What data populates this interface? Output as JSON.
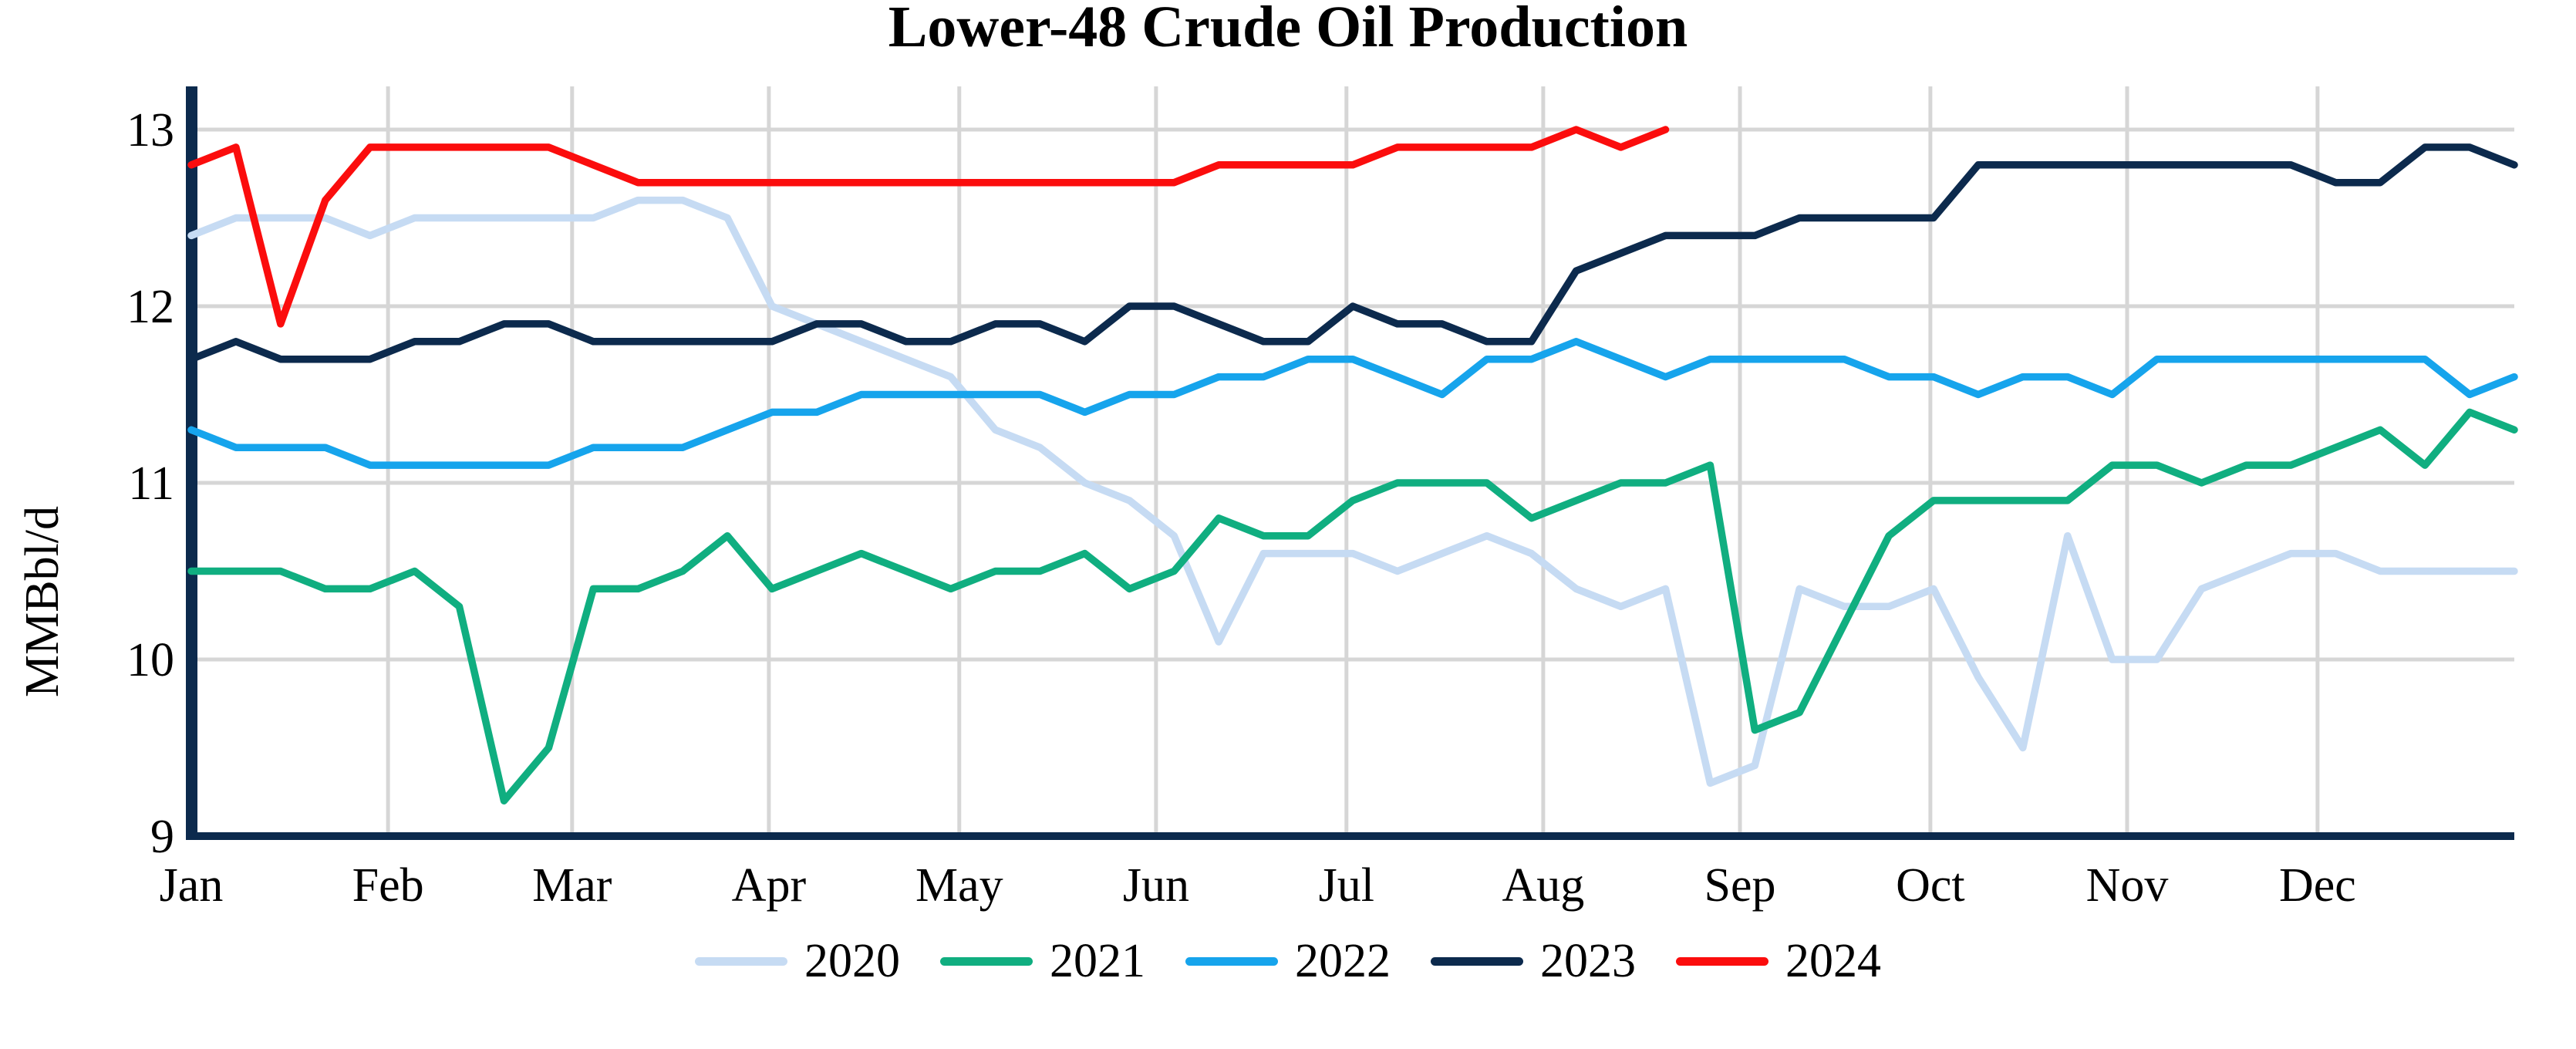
{
  "chart_data": {
    "type": "line",
    "title": "Lower-48 Crude Oil Production",
    "ylabel": "MMBbl/d",
    "x_unit": "week of year",
    "x_tick_labels": [
      "Jan",
      "Feb",
      "Mar",
      "Apr",
      "May",
      "Jun",
      "Jul",
      "Aug",
      "Sep",
      "Oct",
      "Nov",
      "Dec"
    ],
    "y_ticks": [
      9,
      10,
      11,
      12,
      13
    ],
    "ylim": [
      9,
      13
    ],
    "weeks_full_year": 53,
    "grid": true,
    "legend_position": "bottom",
    "colors": {
      "axis": "#0C2A4D",
      "gridline": "#D6D6D6",
      "text": "#000000",
      "background": "#FFFFFF"
    },
    "series": [
      {
        "name": "2020",
        "color": "#C6DBF3",
        "values": [
          12.4,
          12.5,
          12.5,
          12.5,
          12.4,
          12.5,
          12.5,
          12.5,
          12.5,
          12.5,
          12.6,
          12.6,
          12.5,
          12.0,
          11.9,
          11.8,
          11.7,
          11.6,
          11.3,
          11.2,
          11.0,
          10.9,
          10.7,
          10.1,
          10.6,
          10.6,
          10.6,
          10.5,
          10.6,
          10.7,
          10.6,
          10.4,
          10.3,
          10.4,
          9.3,
          9.4,
          10.4,
          10.3,
          10.3,
          10.4,
          9.9,
          9.5,
          10.7,
          10.0,
          10.0,
          10.4,
          10.5,
          10.6,
          10.6,
          10.5,
          10.5,
          10.5,
          10.5
        ]
      },
      {
        "name": "2021",
        "color": "#10AE80",
        "values": [
          10.5,
          10.5,
          10.5,
          10.4,
          10.4,
          10.5,
          10.3,
          9.2,
          9.5,
          10.4,
          10.4,
          10.5,
          10.7,
          10.4,
          10.5,
          10.6,
          10.5,
          10.4,
          10.5,
          10.5,
          10.6,
          10.4,
          10.5,
          10.8,
          10.7,
          10.7,
          10.9,
          11.0,
          11.0,
          11.0,
          10.8,
          10.9,
          11.0,
          11.0,
          11.1,
          9.6,
          9.7,
          10.2,
          10.7,
          10.9,
          10.9,
          10.9,
          10.9,
          11.1,
          11.1,
          11.0,
          11.1,
          11.1,
          11.2,
          11.3,
          11.1,
          11.4,
          11.3
        ]
      },
      {
        "name": "2022",
        "color": "#16A4EC",
        "values": [
          11.3,
          11.2,
          11.2,
          11.2,
          11.1,
          11.1,
          11.1,
          11.1,
          11.1,
          11.2,
          11.2,
          11.2,
          11.3,
          11.4,
          11.4,
          11.5,
          11.5,
          11.5,
          11.5,
          11.5,
          11.4,
          11.5,
          11.5,
          11.6,
          11.6,
          11.7,
          11.7,
          11.6,
          11.5,
          11.7,
          11.7,
          11.8,
          11.7,
          11.6,
          11.7,
          11.7,
          11.7,
          11.7,
          11.6,
          11.6,
          11.5,
          11.6,
          11.6,
          11.5,
          11.7,
          11.7,
          11.7,
          11.7,
          11.7,
          11.7,
          11.7,
          11.5,
          11.6
        ]
      },
      {
        "name": "2023",
        "color": "#0C2A4D",
        "values": [
          11.7,
          11.8,
          11.7,
          11.7,
          11.7,
          11.8,
          11.8,
          11.9,
          11.9,
          11.8,
          11.8,
          11.8,
          11.8,
          11.8,
          11.9,
          11.9,
          11.8,
          11.8,
          11.9,
          11.9,
          11.8,
          12.0,
          12.0,
          11.9,
          11.8,
          11.8,
          12.0,
          11.9,
          11.9,
          11.8,
          11.8,
          12.2,
          12.3,
          12.4,
          12.4,
          12.4,
          12.5,
          12.5,
          12.5,
          12.5,
          12.8,
          12.8,
          12.8,
          12.8,
          12.8,
          12.8,
          12.8,
          12.8,
          12.7,
          12.7,
          12.9,
          12.9,
          12.8
        ]
      },
      {
        "name": "2024",
        "color": "#FB0D0D",
        "values": [
          12.8,
          12.9,
          11.9,
          12.6,
          12.9,
          12.9,
          12.9,
          12.9,
          12.9,
          12.8,
          12.7,
          12.7,
          12.7,
          12.7,
          12.7,
          12.7,
          12.7,
          12.7,
          12.7,
          12.7,
          12.7,
          12.7,
          12.7,
          12.8,
          12.8,
          12.8,
          12.8,
          12.9,
          12.9,
          12.9,
          12.9,
          13.0,
          12.9,
          13.0
        ]
      }
    ]
  }
}
